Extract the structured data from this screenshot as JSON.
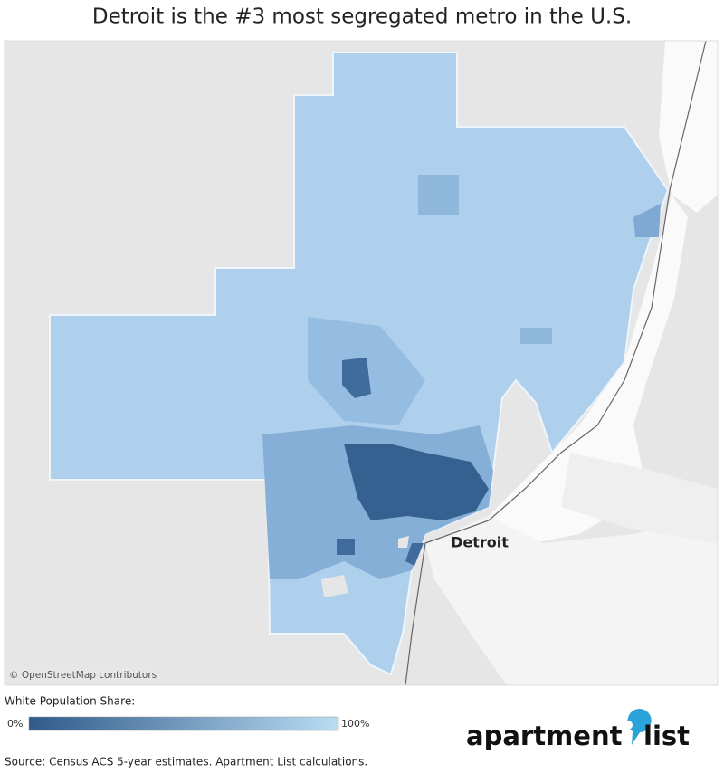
{
  "title": "Detroit is the #3 most segregated metro in the U.S.",
  "map": {
    "city_label": "Detroit",
    "attribution": "© OpenStreetMap contributors"
  },
  "legend": {
    "title": "White Population Share:",
    "min_label": "0%",
    "max_label": "100%"
  },
  "logo": {
    "word1": "apartment",
    "word2": "list"
  },
  "source": "Source: Census ACS 5-year estimates. Apartment List calculations."
}
